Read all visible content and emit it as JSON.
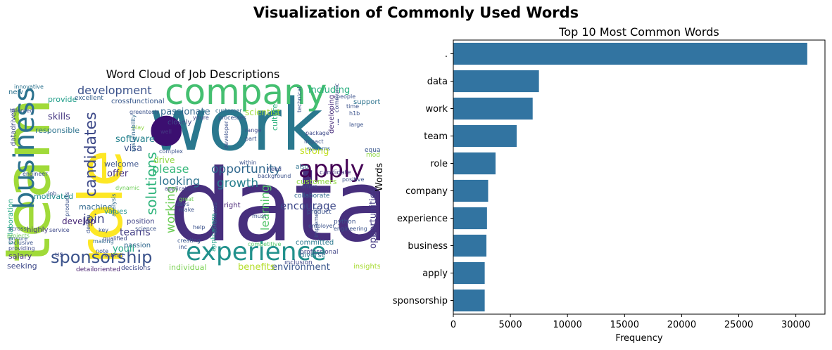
{
  "figure": {
    "title": "Visualization of Commonly Used Words"
  },
  "word_cloud": {
    "title": "Word Cloud of Job Descriptions",
    "palette": "viridis",
    "words": [
      {
        "t": "data",
        "c": "#472f7d"
      },
      {
        "t": "work",
        "c": "#2a788e"
      },
      {
        "t": "•",
        "c": "#3b0f70"
      },
      {
        "t": "team",
        "c": "#a0da39"
      },
      {
        "t": "role",
        "c": "#fde725"
      },
      {
        "t": "company",
        "c": "#44bf70"
      },
      {
        "t": "business",
        "c": "#2c728e"
      },
      {
        "t": "experience",
        "c": "#21918c"
      },
      {
        "t": "apply",
        "c": "#440154"
      },
      {
        "t": "sponsorship",
        "c": "#3b528b"
      },
      {
        "t": "candidates",
        "c": "#3e4a89"
      },
      {
        "t": "development",
        "c": "#3b528b"
      },
      {
        "t": "solutions",
        "c": "#2fb47c"
      },
      {
        "t": "opportunity",
        "c": "#31688e"
      },
      {
        "t": "please",
        "c": "#35b779"
      },
      {
        "t": "including",
        "c": "#29af7f"
      },
      {
        "t": "growth",
        "c": "#277f8e"
      },
      {
        "t": "working",
        "c": "#6ece58"
      },
      {
        "t": "join",
        "c": "#404688"
      },
      {
        "t": "looking",
        "c": "#2c728e"
      },
      {
        "t": "encourage",
        "c": "#3e4989"
      },
      {
        "t": "learning",
        "c": "#52c569"
      },
      {
        "t": "opportunities",
        "c": "#443a83"
      },
      {
        "t": "environment",
        "c": "#39568c"
      },
      {
        "t": "benefits",
        "c": "#b5de2b"
      },
      {
        "t": "teams",
        "c": "#433e85"
      },
      {
        "t": "youll",
        "c": "#22a884"
      },
      {
        "t": "passionate",
        "c": "#31688e"
      },
      {
        "t": "skills",
        "c": "#453781"
      },
      {
        "t": "scientist",
        "c": "#a0da39"
      },
      {
        "t": "strong",
        "c": "#c2df23"
      },
      {
        "t": "software",
        "c": "#26828e"
      },
      {
        "t": "visa",
        "c": "#3b528b"
      },
      {
        "t": "drive",
        "c": "#90d743"
      },
      {
        "t": "offer",
        "c": "#46327e"
      },
      {
        "t": "develop",
        "c": "#482878"
      },
      {
        "t": "welcome",
        "c": "#3b528b"
      },
      {
        "t": "machine",
        "c": "#31688e"
      },
      {
        "t": "responsible",
        "c": "#2c728e"
      },
      {
        "t": "motivated",
        "c": "#228c8d"
      },
      {
        "t": "salary",
        "c": "#46337e"
      },
      {
        "t": "seeking",
        "c": "#3e4989"
      },
      {
        "t": "individual",
        "c": "#7ad151"
      },
      {
        "t": "provide",
        "c": "#1f9e89"
      },
      {
        "t": "culture",
        "c": "#2db27d"
      },
      {
        "t": "support",
        "c": "#2c728e"
      },
      {
        "t": "developing",
        "c": "#472d7b"
      },
      {
        "t": "diverse",
        "c": "#2c728e"
      },
      {
        "t": "right",
        "c": "#482576"
      },
      {
        "t": "passion",
        "c": "#31688e"
      },
      {
        "t": "crossfunctional",
        "c": "#38588c"
      },
      {
        "t": "closely",
        "c": "#3e4a89"
      },
      {
        "t": "position",
        "c": "#414487"
      },
      {
        "t": "new",
        "c": "#2c728e"
      },
      {
        "t": "datadriven",
        "c": "#3e4989"
      },
      {
        "t": "collaboration",
        "c": "#22a884"
      },
      {
        "t": "us",
        "c": "#3e4a89"
      },
      {
        "t": "highly",
        "c": "#443983"
      },
      {
        "t": "customers",
        "c": "#90d743"
      },
      {
        "t": "committed",
        "c": "#2a788e"
      },
      {
        "t": "applications",
        "c": "#20a386"
      },
      {
        "t": "values",
        "c": "#21918c"
      },
      {
        "t": "insights",
        "c": "#a8db34"
      },
      {
        "t": "detailoriented",
        "c": "#481f70"
      },
      {
        "t": "decisions",
        "c": "#3e4989"
      },
      {
        "t": "collaborate",
        "c": "#31688e"
      },
      {
        "t": "product",
        "c": "#3b528b"
      },
      {
        "t": "models",
        "c": "#8fd744"
      },
      {
        "t": "professional",
        "c": "#414487"
      },
      {
        "t": "inclusion",
        "c": "#3e4989"
      },
      {
        "t": "equal",
        "c": "#39568c"
      },
      {
        "t": "also",
        "c": "#2c728e"
      },
      {
        "t": "candidate",
        "c": "#46327e"
      },
      {
        "t": "python",
        "c": "#3b528b"
      },
      {
        "t": "excellent",
        "c": "#35608d"
      },
      {
        "t": "innovative",
        "c": "#2c728e"
      },
      {
        "t": "talented",
        "c": "#3b528b"
      },
      {
        "t": "customer",
        "c": "#31688e"
      },
      {
        "t": "youre",
        "c": "#3e4989"
      },
      {
        "t": "background",
        "c": "#3b528b"
      },
      {
        "t": "package",
        "c": "#3e4a89"
      },
      {
        "t": "impact",
        "c": "#3b528b"
      },
      {
        "t": "systems",
        "c": "#31688e"
      },
      {
        "t": "technical",
        "c": "#3b528b"
      },
      {
        "t": "communication",
        "c": "#3e4989"
      },
      {
        "t": "employer",
        "c": "#3b528b"
      },
      {
        "t": "creating",
        "c": "#39568c"
      },
      {
        "t": "processes",
        "c": "#3b528b"
      },
      {
        "t": "science",
        "c": "#3b528b"
      },
      {
        "t": "application",
        "c": "#414487"
      },
      {
        "t": "make",
        "c": "#3b528b"
      },
      {
        "t": "days",
        "c": "#3b528b"
      },
      {
        "t": "need",
        "c": "#3e4989"
      },
      {
        "t": "well",
        "c": "#453781"
      },
      {
        "t": "must",
        "c": "#3b528b"
      },
      {
        "t": "great",
        "c": "#6ece58"
      },
      {
        "t": "dynamic",
        "c": "#6ece58"
      },
      {
        "t": "key",
        "c": "#3b528b"
      },
      {
        "t": "making",
        "c": "#31688e"
      },
      {
        "t": "note",
        "c": "#3b528b"
      },
      {
        "t": "submit",
        "c": "#3e4989"
      },
      {
        "t": "ensure",
        "c": "#39568c"
      },
      {
        "t": "across",
        "c": "#3b528b"
      },
      {
        "t": "inclusive",
        "c": "#3b528b"
      },
      {
        "t": "people",
        "c": "#3b528b"
      },
      {
        "t": "h1b",
        "c": "#3b528b"
      },
      {
        "t": "range",
        "c": "#3e4989"
      },
      {
        "t": "part",
        "c": "#3b528b"
      },
      {
        "t": "analysis",
        "c": "#31688e"
      },
      {
        "t": "products",
        "c": "#3b528b"
      },
      {
        "t": "service",
        "c": "#3e4989"
      },
      {
        "t": "engineer",
        "c": "#3b528b"
      },
      {
        "t": "play",
        "c": "#8fd744"
      },
      {
        "t": "continuous",
        "c": "#3b528b"
      },
      {
        "t": "positive",
        "c": "#3b528b"
      },
      {
        "t": "inc",
        "c": "#3b528b"
      },
      {
        "t": "help",
        "c": "#3b528b"
      },
      {
        "t": "offers",
        "c": "#3e4989"
      },
      {
        "t": "complex",
        "c": "#3b528b"
      },
      {
        "t": "sustainability",
        "c": "#31688e"
      },
      {
        "t": "developer",
        "c": "#3b528b"
      },
      {
        "t": "within",
        "c": "#3b528b"
      },
      {
        "t": "engineering",
        "c": "#3b528b"
      },
      {
        "t": "implement",
        "c": "#3b528b"
      },
      {
        "t": "competitive",
        "c": "#52c569"
      },
      {
        "t": "qualified",
        "c": "#3e4989"
      },
      {
        "t": "job",
        "c": "#3b528b"
      },
      {
        "t": "providing",
        "c": "#3e4989"
      },
      {
        "t": "greentech",
        "c": "#3b528b"
      },
      {
        "t": "time",
        "c": "#3b528b"
      },
      {
        "t": "large",
        "c": "#3b528b"
      },
      {
        "t": "design",
        "c": "#3b528b"
      },
      {
        "t": "projects",
        "c": "#6ece58"
      },
      {
        "t": "!",
        "c": "#3e4989"
      }
    ]
  },
  "chart_data": {
    "type": "bar",
    "orientation": "horizontal",
    "title": "Top 10 Most Common Words",
    "xlabel": "Frequency",
    "ylabel": "Words",
    "categories": [
      ".",
      "data",
      "work",
      "team",
      "role",
      "company",
      "experience",
      "business",
      "apply",
      "sponsorship"
    ],
    "values": [
      31000,
      7500,
      6950,
      5550,
      3700,
      3050,
      2950,
      2900,
      2750,
      2750
    ],
    "xlim": [
      0,
      32550
    ],
    "xticks": [
      0,
      5000,
      10000,
      15000,
      20000,
      25000,
      30000
    ],
    "bar_color": "#3274a1",
    "grid": false
  }
}
